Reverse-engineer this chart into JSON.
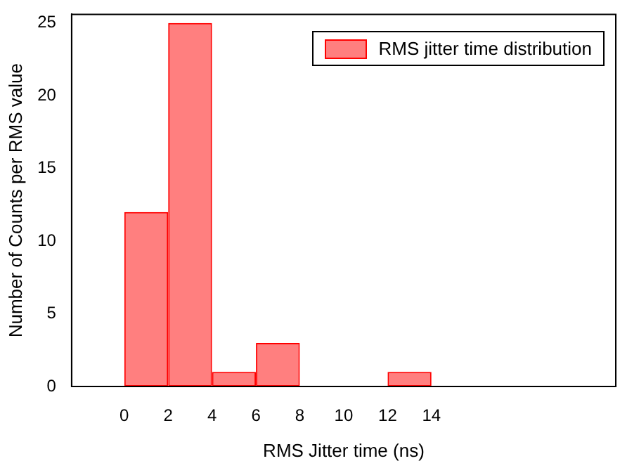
{
  "chart_data": {
    "type": "histogram",
    "xlabel": "RMS Jitter time (ns)",
    "ylabel": "Number of Counts per RMS value",
    "bins": [
      0,
      2,
      4,
      6,
      8,
      10,
      12,
      14
    ],
    "series": [
      {
        "name": "RMS jitter time distribution",
        "color": "#ff0000",
        "values": [
          12,
          25,
          1,
          3,
          0,
          0,
          1
        ]
      }
    ],
    "xlim": [
      -2.4,
      22.4
    ],
    "xticks": [
      0,
      2,
      4,
      6,
      8,
      10,
      12,
      14
    ],
    "ylim": [
      0,
      25.6
    ],
    "yticks": [
      0,
      5,
      10,
      15,
      20,
      25
    ],
    "grid": false,
    "legend": "top right"
  }
}
